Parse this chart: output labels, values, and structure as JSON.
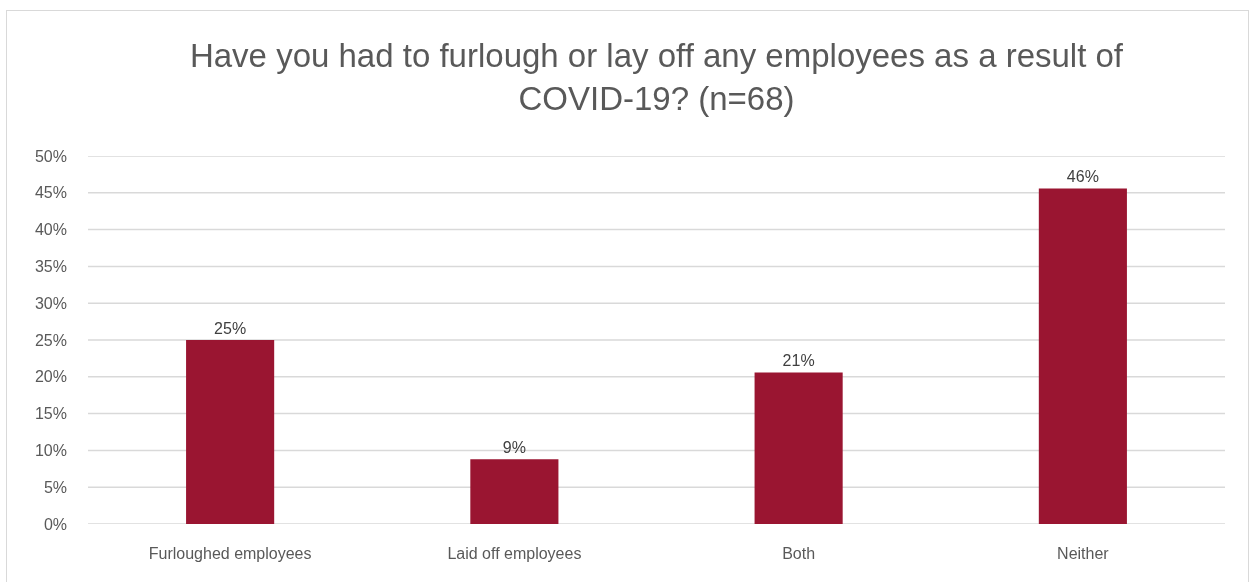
{
  "chart_data": {
    "type": "bar",
    "title": "Have you had to furlough or lay off any employees as a result of COVID-19? (n=68)",
    "categories": [
      "Furloughed employees",
      "Laid off employees",
      "Both",
      "Neither"
    ],
    "values": [
      25,
      8.8,
      20.6,
      45.6
    ],
    "value_labels": [
      "25%",
      "9%",
      "21%",
      "46%"
    ],
    "color": "#9a1531",
    "ylim": [
      0,
      50
    ],
    "yticks": [
      {
        "value": 0,
        "label": "0%"
      },
      {
        "value": 5,
        "label": "5%"
      },
      {
        "value": 10,
        "label": "10%"
      },
      {
        "value": 15,
        "label": "15%"
      },
      {
        "value": 20,
        "label": "20%"
      },
      {
        "value": 25,
        "label": "25%"
      },
      {
        "value": 30,
        "label": "30%"
      },
      {
        "value": 35,
        "label": "35%"
      },
      {
        "value": 40,
        "label": "40%"
      },
      {
        "value": 45,
        "label": "45%"
      },
      {
        "value": 50,
        "label": "50%"
      }
    ],
    "grid": "y"
  }
}
